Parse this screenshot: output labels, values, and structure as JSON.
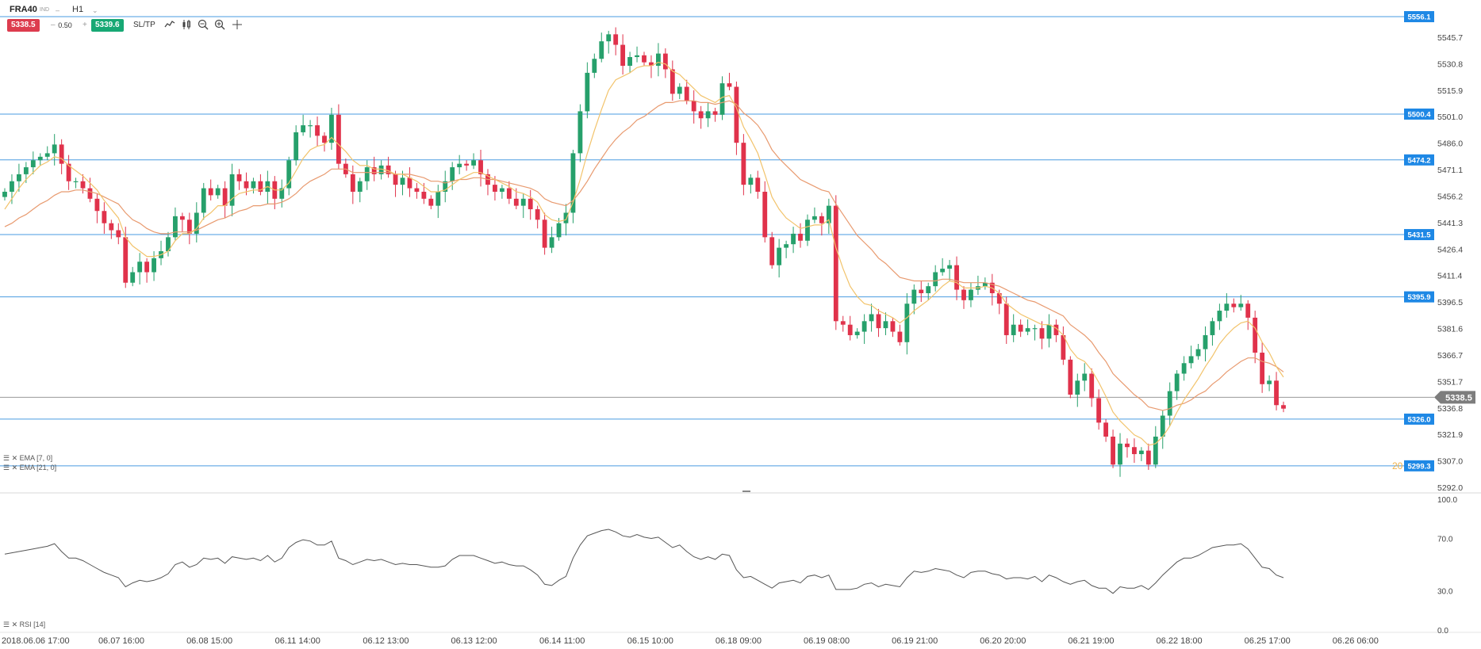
{
  "toolbar": {
    "symbol": "FRA40",
    "symbol_sub": "IND",
    "dropdown_icon": "chevron-down",
    "timeframe": "H1",
    "sell_price": "5338.5",
    "buy_price": "5339.6",
    "volume": "0.50",
    "minus": "–",
    "plus": "+",
    "sltp_label": "SL/TP",
    "tools": [
      "line-chart-icon",
      "candles-icon",
      "zoom-out-icon",
      "zoom-in-icon",
      "crosshair-icon"
    ]
  },
  "legend": {
    "ema7": "EMA [7, 0]",
    "ema21": "EMA [21, 0]",
    "rsi": "RSI [14]"
  },
  "colors": {
    "bull": "#26a06b",
    "bear": "#e0324b",
    "ema7": "#f2c36b",
    "ema21": "#e89a6f",
    "hline": "#4a9be0",
    "price_tag": "#1e88e5",
    "current_tag": "#7d7d7d",
    "rsi_line": "#555555"
  },
  "chart_data": {
    "type": "candlestick",
    "y_ticks": [
      "5545.7",
      "5530.8",
      "5515.9",
      "5501.0",
      "5486.0",
      "5471.1",
      "5456.2",
      "5441.3",
      "5426.4",
      "5411.4",
      "5396.5",
      "5381.6",
      "5366.7",
      "5351.7",
      "5336.8",
      "5321.9",
      "5307.0",
      "5292.0"
    ],
    "ylim": [
      5287,
      5562
    ],
    "x_labels": [
      "2018.06.06 17:00",
      "06.07 16:00",
      "06.08 15:00",
      "06.11 14:00",
      "06.12 13:00",
      "06.13 12:00",
      "06.14 11:00",
      "06.15 10:00",
      "06.18 09:00",
      "06.19 08:00",
      "06.19 21:00",
      "06.20 20:00",
      "06.21 19:00",
      "06.22 18:00",
      "06.25 17:00",
      "06.26 06:00"
    ],
    "horizontal_lines": [
      5556.1,
      5500.4,
      5474.2,
      5431.5,
      5395.9,
      5326.0,
      5299.3
    ],
    "horizontal_line_labels": [
      "5556.1",
      "5500.4",
      "5474.2",
      "5431.5",
      "5395.9",
      "5326.0",
      "5299.3"
    ],
    "current_price": 5338.5,
    "current_price_label": "5338.5",
    "partial_label": "20",
    "closes": [
      5456,
      5462,
      5466,
      5470,
      5474,
      5476,
      5478,
      5483,
      5472,
      5462,
      5462,
      5458,
      5452,
      5445,
      5438,
      5434,
      5430,
      5404,
      5410,
      5416,
      5410,
      5418,
      5422,
      5430,
      5442,
      5440,
      5432,
      5444,
      5458,
      5454,
      5458,
      5448,
      5466,
      5462,
      5458,
      5462,
      5456,
      5462,
      5452,
      5458,
      5474,
      5490,
      5494,
      5494,
      5488,
      5484,
      5500,
      5472,
      5466,
      5456,
      5462,
      5470,
      5466,
      5471,
      5466,
      5460,
      5464,
      5458,
      5456,
      5452,
      5448,
      5456,
      5462,
      5470,
      5472,
      5471,
      5474,
      5466,
      5460,
      5456,
      5458,
      5452,
      5448,
      5452,
      5446,
      5440,
      5424,
      5430,
      5438,
      5444,
      5478,
      5502,
      5524,
      5532,
      5542,
      5546,
      5540,
      5528,
      5533,
      5534,
      5530,
      5528,
      5535,
      5526,
      5512,
      5516,
      5508,
      5502,
      5498,
      5502,
      5500,
      5518,
      5516,
      5484,
      5460,
      5464,
      5456,
      5430,
      5414,
      5424,
      5426,
      5432,
      5428,
      5440,
      5442,
      5438,
      5448,
      5382,
      5380,
      5374,
      5376,
      5382,
      5386,
      5378,
      5382,
      5376,
      5370,
      5392,
      5400,
      5398,
      5402,
      5410,
      5412,
      5414,
      5400,
      5394,
      5400,
      5402,
      5404,
      5398,
      5392,
      5374,
      5380,
      5376,
      5378,
      5378,
      5372,
      5380,
      5374,
      5360,
      5340,
      5348,
      5352,
      5338,
      5324,
      5316,
      5300,
      5312,
      5310,
      5306,
      5308,
      5300,
      5316,
      5328,
      5342,
      5352,
      5358,
      5362,
      5366,
      5374,
      5382,
      5388,
      5392,
      5390,
      5392,
      5384,
      5364,
      5346,
      5348,
      5334,
      5332
    ],
    "ema7": [
      5446,
      5452,
      5458,
      5463,
      5467,
      5471,
      5473,
      5476,
      5475,
      5471,
      5468,
      5465,
      5461,
      5457,
      5451,
      5446,
      5441,
      5430,
      5425,
      5422,
      5419,
      5419,
      5420,
      5422,
      5428,
      5432,
      5432,
      5435,
      5441,
      5444,
      5448,
      5448,
      5452,
      5455,
      5456,
      5457,
      5457,
      5459,
      5457,
      5457,
      5461,
      5468,
      5475,
      5480,
      5482,
      5483,
      5487,
      5483,
      5479,
      5474,
      5471,
      5471,
      5469,
      5469,
      5468,
      5466,
      5466,
      5464,
      5462,
      5459,
      5456,
      5456,
      5457,
      5460,
      5463,
      5465,
      5467,
      5467,
      5465,
      5463,
      5461,
      5459,
      5456,
      5455,
      5453,
      5450,
      5443,
      5440,
      5439,
      5440,
      5450,
      5463,
      5478,
      5491,
      5503,
      5514,
      5520,
      5522,
      5524,
      5527,
      5528,
      5528,
      5530,
      5529,
      5525,
      5523,
      5519,
      5515,
      5511,
      5509,
      5507,
      5510,
      5511,
      5504,
      5493,
      5486,
      5478,
      5466,
      5453,
      5446,
      5441,
      5438,
      5435,
      5436,
      5437,
      5437,
      5440,
      5424,
      5412,
      5402,
      5396,
      5392,
      5391,
      5388,
      5386,
      5384,
      5381,
      5384,
      5388,
      5391,
      5394,
      5398,
      5402,
      5405,
      5404,
      5401,
      5401,
      5401,
      5402,
      5401,
      5398,
      5392,
      5389,
      5386,
      5384,
      5382,
      5380,
      5380,
      5378,
      5374,
      5366,
      5361,
      5359,
      5354,
      5347,
      5339,
      5330,
      5325,
      5321,
      5317,
      5315,
      5311,
      5312,
      5316,
      5322,
      5330,
      5337,
      5343,
      5349,
      5356,
      5362,
      5369,
      5374,
      5378,
      5381,
      5382,
      5378,
      5370,
      5364,
      5356,
      5350
    ],
    "ema21": [
      5436,
      5438,
      5441,
      5443,
      5446,
      5449,
      5451,
      5454,
      5456,
      5456,
      5457,
      5457,
      5456,
      5455,
      5453,
      5451,
      5449,
      5444,
      5440,
      5438,
      5435,
      5433,
      5432,
      5432,
      5433,
      5433,
      5433,
      5434,
      5436,
      5438,
      5440,
      5441,
      5443,
      5445,
      5446,
      5448,
      5448,
      5449,
      5449,
      5450,
      5452,
      5455,
      5459,
      5462,
      5464,
      5466,
      5469,
      5469,
      5469,
      5467,
      5467,
      5467,
      5467,
      5467,
      5467,
      5466,
      5466,
      5466,
      5465,
      5464,
      5462,
      5462,
      5461,
      5462,
      5463,
      5463,
      5464,
      5464,
      5463,
      5463,
      5462,
      5461,
      5460,
      5459,
      5458,
      5456,
      5452,
      5450,
      5449,
      5448,
      5451,
      5456,
      5462,
      5469,
      5475,
      5481,
      5486,
      5490,
      5493,
      5497,
      5499,
      5502,
      5505,
      5507,
      5507,
      5508,
      5508,
      5508,
      5507,
      5507,
      5506,
      5507,
      5508,
      5506,
      5501,
      5498,
      5494,
      5488,
      5480,
      5475,
      5471,
      5467,
      5463,
      5461,
      5459,
      5457,
      5456,
      5449,
      5443,
      5437,
      5431,
      5427,
      5423,
      5418,
      5415,
      5411,
      5407,
      5406,
      5405,
      5405,
      5405,
      5405,
      5406,
      5406,
      5405,
      5404,
      5404,
      5404,
      5404,
      5403,
      5402,
      5400,
      5398,
      5396,
      5394,
      5393,
      5391,
      5389,
      5387,
      5385,
      5380,
      5377,
      5374,
      5370,
      5364,
      5359,
      5352,
      5348,
      5344,
      5340,
      5337,
      5333,
      5332,
      5331,
      5332,
      5334,
      5335,
      5337,
      5340,
      5342,
      5346,
      5349,
      5353,
      5356,
      5359,
      5361,
      5361,
      5359,
      5358,
      5356,
      5353
    ],
    "rsi": {
      "ylim": [
        0,
        100
      ],
      "y_ticks": [
        "100.0",
        "70.0",
        "30.0",
        "0.0"
      ],
      "values": [
        58,
        59,
        60,
        61,
        62,
        63,
        64,
        66,
        60,
        55,
        55,
        53,
        50,
        47,
        44,
        42,
        40,
        33,
        36,
        38,
        37,
        38,
        40,
        43,
        50,
        52,
        48,
        50,
        55,
        54,
        55,
        51,
        56,
        55,
        54,
        55,
        53,
        57,
        52,
        55,
        63,
        67,
        69,
        68,
        65,
        65,
        68,
        55,
        53,
        50,
        52,
        54,
        53,
        54,
        52,
        50,
        51,
        50,
        50,
        49,
        48,
        48,
        49,
        54,
        57,
        57,
        57,
        55,
        53,
        51,
        52,
        50,
        49,
        49,
        46,
        42,
        35,
        34,
        38,
        41,
        55,
        65,
        72,
        74,
        76,
        77,
        75,
        72,
        71,
        73,
        71,
        70,
        71,
        67,
        63,
        65,
        60,
        56,
        54,
        56,
        54,
        58,
        57,
        46,
        40,
        41,
        38,
        35,
        32,
        36,
        37,
        38,
        36,
        41,
        42,
        40,
        42,
        31,
        31,
        31,
        32,
        35,
        36,
        33,
        35,
        34,
        33,
        40,
        45,
        44,
        45,
        47,
        46,
        45,
        42,
        40,
        44,
        45,
        45,
        43,
        42,
        39,
        40,
        40,
        39,
        41,
        37,
        42,
        40,
        37,
        35,
        37,
        38,
        34,
        32,
        32,
        28,
        33,
        32,
        32,
        34,
        31,
        36,
        42,
        47,
        52,
        55,
        55,
        57,
        60,
        63,
        64,
        65,
        65,
        66,
        62,
        55,
        48,
        47,
        42,
        40
      ]
    }
  }
}
